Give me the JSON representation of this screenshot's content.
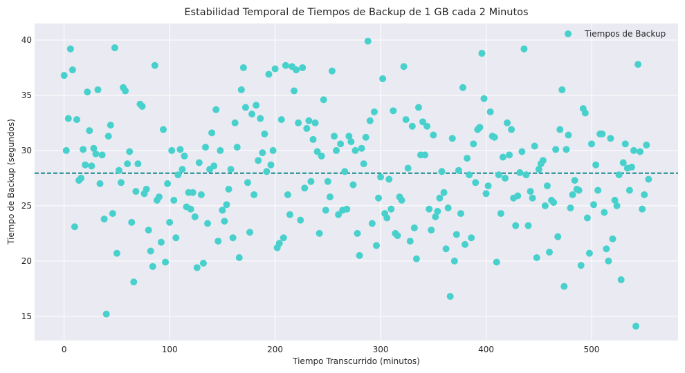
{
  "chart_data": {
    "type": "scatter",
    "title": "Estabilidad Temporal de Tiempos de Backup de 1 GB cada 2 Minutos",
    "xlabel": "Tiempo Transcurrido (minutos)",
    "ylabel": "Tiempo de Backup (segundos)",
    "xlim": [
      -28,
      582
    ],
    "ylim": [
      12.8,
      41.5
    ],
    "xticks": [
      0,
      100,
      200,
      300,
      400,
      500
    ],
    "yticks": [
      15,
      20,
      25,
      30,
      35,
      40
    ],
    "grid": true,
    "legend_position": "top-right",
    "reference_line": {
      "y": 27.95,
      "style": "dashed",
      "color": "#008080"
    },
    "series": [
      {
        "name": "Tiempos de Backup",
        "color": "#48D1CC",
        "x": [
          0,
          2,
          4,
          6,
          8,
          10,
          12,
          14,
          16,
          18,
          20,
          22,
          24,
          26,
          28,
          30,
          32,
          34,
          36,
          38,
          40,
          42,
          44,
          46,
          48,
          50,
          52,
          54,
          56,
          58,
          60,
          62,
          64,
          66,
          68,
          70,
          72,
          74,
          76,
          78,
          80,
          82,
          84,
          86,
          88,
          90,
          92,
          94,
          96,
          98,
          100,
          102,
          104,
          106,
          108,
          110,
          112,
          114,
          116,
          118,
          120,
          122,
          124,
          126,
          128,
          130,
          132,
          134,
          136,
          138,
          140,
          142,
          144,
          146,
          148,
          150,
          152,
          154,
          156,
          158,
          160,
          162,
          164,
          166,
          168,
          170,
          172,
          174,
          176,
          178,
          180,
          182,
          184,
          186,
          188,
          190,
          192,
          194,
          196,
          198,
          200,
          202,
          204,
          206,
          208,
          210,
          212,
          214,
          216,
          218,
          220,
          222,
          224,
          226,
          228,
          230,
          232,
          234,
          236,
          238,
          240,
          242,
          244,
          246,
          248,
          250,
          252,
          254,
          256,
          258,
          260,
          262,
          264,
          266,
          268,
          270,
          272,
          274,
          276,
          278,
          280,
          282,
          284,
          286,
          288,
          290,
          292,
          294,
          296,
          298,
          300,
          302,
          304,
          306,
          308,
          310,
          312,
          314,
          316,
          318,
          320,
          322,
          324,
          326,
          328,
          330,
          332,
          334,
          336,
          338,
          340,
          342,
          344,
          346,
          348,
          350,
          352,
          354,
          356,
          358,
          360,
          362,
          364,
          366,
          368,
          370,
          372,
          374,
          376,
          378,
          380,
          382,
          384,
          386,
          388,
          390,
          392,
          394,
          396,
          398,
          400,
          402,
          404,
          406,
          408,
          410,
          412,
          414,
          416,
          418,
          420,
          422,
          424,
          426,
          428,
          430,
          432,
          434,
          436,
          438,
          440,
          442,
          444,
          446,
          448,
          450,
          452,
          454,
          456,
          458,
          460,
          462,
          464,
          466,
          468,
          470,
          472,
          474,
          476,
          478,
          480,
          482,
          484,
          486,
          488,
          490,
          492,
          494,
          496,
          498,
          500,
          502,
          504,
          506,
          508,
          510,
          512,
          514,
          516,
          518,
          520,
          522,
          524,
          526,
          528,
          530,
          532,
          534,
          536,
          538,
          540,
          542,
          544,
          546,
          548,
          550,
          552,
          554
        ],
        "y": [
          36.8,
          30.0,
          32.9,
          39.2,
          37.3,
          23.1,
          32.8,
          27.3,
          27.5,
          30.1,
          28.7,
          35.3,
          31.8,
          28.6,
          30.2,
          29.7,
          35.5,
          27.0,
          29.6,
          23.8,
          15.2,
          31.3,
          32.3,
          24.3,
          39.3,
          20.7,
          28.2,
          27.1,
          35.7,
          35.4,
          28.8,
          29.9,
          23.5,
          18.1,
          26.3,
          28.8,
          34.2,
          34.0,
          26.1,
          26.5,
          22.8,
          20.9,
          19.5,
          37.7,
          25.5,
          25.8,
          21.7,
          31.9,
          19.9,
          27.0,
          23.5,
          30.0,
          25.5,
          22.1,
          27.8,
          30.1,
          28.3,
          29.5,
          24.9,
          26.2,
          24.7,
          26.2,
          24.0,
          19.4,
          28.9,
          26.0,
          19.8,
          30.3,
          23.4,
          28.3,
          31.6,
          28.6,
          33.7,
          21.8,
          30.0,
          24.6,
          23.6,
          25.1,
          26.5,
          28.3,
          22.1,
          32.5,
          30.3,
          20.3,
          35.5,
          37.5,
          33.9,
          27.1,
          22.6,
          33.3,
          26.0,
          34.1,
          29.1,
          32.9,
          29.8,
          31.5,
          28.1,
          36.9,
          28.7,
          30.0,
          37.4,
          21.2,
          21.6,
          32.8,
          22.1,
          37.7,
          26.0,
          24.2,
          37.6,
          35.4,
          37.3,
          32.5,
          23.7,
          37.5,
          26.6,
          32.0,
          32.7,
          27.2,
          31.0,
          32.5,
          29.9,
          22.5,
          29.5,
          34.6,
          24.6,
          27.2,
          25.8,
          37.2,
          31.3,
          30.0,
          24.2,
          30.6,
          24.6,
          28.1,
          24.7,
          31.3,
          30.8,
          26.9,
          30.0,
          22.5,
          20.5,
          30.2,
          28.8,
          31.2,
          39.9,
          32.7,
          23.4,
          33.5,
          21.4,
          25.7,
          27.6,
          36.5,
          24.3,
          23.9,
          27.4,
          24.7,
          33.6,
          22.5,
          22.3,
          25.8,
          25.5,
          37.6,
          32.8,
          28.4,
          21.8,
          32.2,
          23.0,
          20.2,
          33.9,
          29.6,
          32.6,
          29.6,
          32.2,
          24.7,
          22.8,
          31.4,
          24.0,
          24.5,
          25.7,
          28.1,
          26.2,
          21.1,
          24.8,
          16.8,
          31.1,
          20.0,
          22.4,
          28.2,
          24.3,
          35.7,
          21.5,
          29.3,
          27.8,
          22.1,
          30.6,
          27.1,
          31.9,
          32.1,
          38.8,
          34.7,
          26.1,
          26.8,
          33.5,
          31.3,
          31.2,
          19.9,
          27.8,
          24.3,
          29.4,
          27.5,
          32.5,
          29.6,
          31.9,
          25.7,
          23.2,
          25.9,
          28.0,
          29.9,
          39.2,
          27.8,
          23.2,
          26.3,
          25.7,
          30.4,
          20.3,
          28.3,
          28.8,
          29.1,
          25.0,
          26.8,
          20.8,
          25.5,
          25.3,
          30.1,
          22.2,
          31.9,
          35.5,
          17.7,
          30.1,
          31.4,
          24.8,
          26.0,
          27.3,
          26.5,
          26.4,
          19.6,
          33.8,
          33.4,
          23.9,
          20.7,
          30.6,
          25.1,
          28.7,
          26.4,
          31.5,
          31.5,
          24.4,
          21.1,
          20.0,
          31.1,
          22.0,
          25.5,
          25.0,
          27.8,
          18.3,
          28.9,
          30.6,
          28.4,
          26.4,
          28.5,
          30.0,
          14.1,
          37.8,
          29.9,
          24.7,
          26.0,
          30.5,
          27.4
        ]
      }
    ]
  }
}
